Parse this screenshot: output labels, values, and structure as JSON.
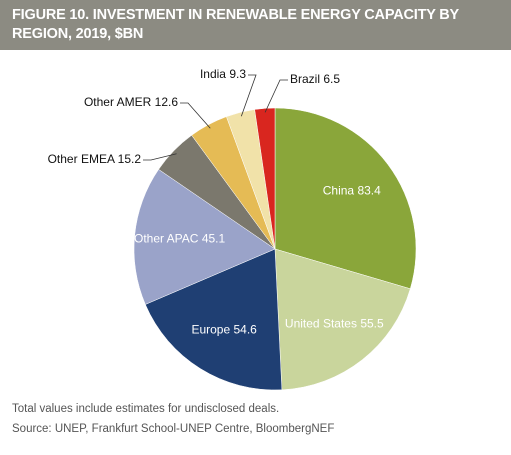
{
  "chart_data": {
    "type": "pie",
    "title": "FIGURE 10. INVESTMENT IN RENEWABLE ENERGY CAPACITY BY REGION, 2019, $BN",
    "categories": [
      "China",
      "United States",
      "Europe",
      "Other APAC",
      "Other EMEA",
      "Other AMER",
      "India",
      "Brazil"
    ],
    "values": [
      83.4,
      55.5,
      54.6,
      45.1,
      15.2,
      12.6,
      9.3,
      6.5
    ],
    "colors": [
      "#8aa63a",
      "#c9d59c",
      "#1f3f73",
      "#9aa3c9",
      "#7b786d",
      "#e5bb55",
      "#f1e2a9",
      "#d9261f"
    ],
    "notes": [
      "Total values include estimates for undisclosed deals.",
      "Source: UNEP, Frankfurt School-UNEP Centre, BloombergNEF"
    ]
  }
}
